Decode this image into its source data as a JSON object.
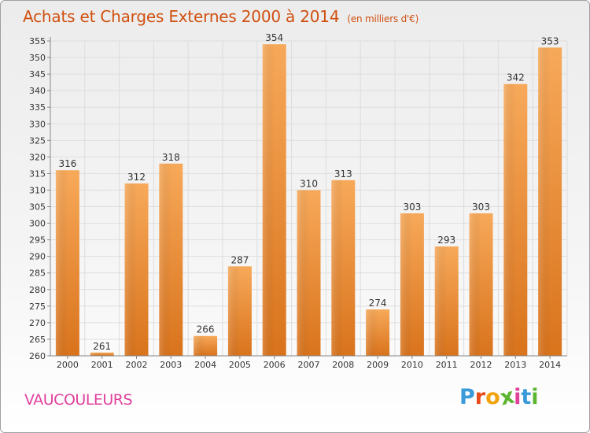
{
  "title": "Achats et Charges Externes 2000 à 2014",
  "subtitle": "(en milliers d'€)",
  "commune": "VAUCOULEURS",
  "logo": {
    "letters": [
      "P",
      "r",
      "o",
      "x",
      "i",
      "t",
      "i"
    ],
    "colors": [
      "#3a9ad9",
      "#e84a1b",
      "#f2a20c",
      "#5cb531",
      "#e0409c",
      "#3a9ad9",
      "#5cb531"
    ]
  },
  "colors": {
    "bar_light": "#f7a95a",
    "bar_dark": "#d9731c",
    "title": "#d05010",
    "commune": "#e0409c",
    "grid": "#dddddd"
  },
  "chart_data": {
    "type": "bar",
    "title": "Achats et Charges Externes 2000 à 2014",
    "subtitle": "(en milliers d'€)",
    "categories": [
      "2000",
      "2001",
      "2002",
      "2003",
      "2004",
      "2005",
      "2006",
      "2007",
      "2008",
      "2009",
      "2010",
      "2011",
      "2012",
      "2013",
      "2014"
    ],
    "values": [
      316,
      261,
      312,
      318,
      266,
      287,
      354,
      310,
      313,
      274,
      303,
      293,
      303,
      342,
      353
    ],
    "ylim": [
      260,
      355
    ],
    "yticks": [
      260,
      265,
      270,
      275,
      280,
      285,
      290,
      295,
      300,
      305,
      310,
      315,
      320,
      325,
      330,
      335,
      340,
      345,
      350,
      355
    ],
    "grid": true
  }
}
